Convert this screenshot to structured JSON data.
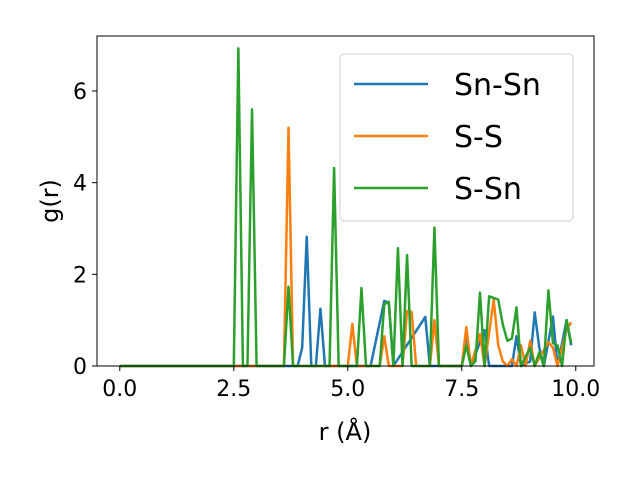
{
  "chart_data": {
    "type": "line",
    "xlabel": "r (Å)",
    "ylabel": "g(r)",
    "xlim": [
      -0.5,
      10.4
    ],
    "ylim": [
      0,
      7.2
    ],
    "x_ticks": [
      "0.0",
      "2.5",
      "5.0",
      "7.5",
      "10.0"
    ],
    "y_ticks": [
      "0",
      "2",
      "4",
      "6"
    ],
    "legend_position": "upper right",
    "series": [
      {
        "name": "Sn-Sn",
        "color": "#1f77b4",
        "points": [
          [
            0,
            0
          ],
          [
            3.8,
            0
          ],
          [
            3.9,
            0
          ],
          [
            4.0,
            0.4
          ],
          [
            4.1,
            2.82
          ],
          [
            4.2,
            0
          ],
          [
            4.3,
            0
          ],
          [
            4.4,
            1.25
          ],
          [
            4.5,
            0
          ],
          [
            5.5,
            0
          ],
          [
            5.8,
            1.42
          ],
          [
            5.9,
            1.38
          ],
          [
            6.0,
            0
          ],
          [
            6.7,
            1.07
          ],
          [
            6.8,
            0
          ],
          [
            7.5,
            0
          ],
          [
            7.6,
            0.7
          ],
          [
            7.7,
            0
          ],
          [
            8.0,
            0.78
          ],
          [
            8.1,
            0
          ],
          [
            8.6,
            0
          ],
          [
            8.7,
            0.65
          ],
          [
            8.8,
            0
          ],
          [
            9.0,
            0.1
          ],
          [
            9.1,
            1.17
          ],
          [
            9.2,
            0.4
          ],
          [
            9.3,
            0
          ],
          [
            9.5,
            1.08
          ],
          [
            9.6,
            0
          ],
          [
            9.8,
            1.0
          ],
          [
            9.9,
            0.45
          ]
        ]
      },
      {
        "name": "S-S",
        "color": "#ff7f0e",
        "points": [
          [
            0,
            0
          ],
          [
            3.6,
            0
          ],
          [
            3.7,
            5.2
          ],
          [
            3.8,
            0
          ],
          [
            5.0,
            0
          ],
          [
            5.1,
            0.92
          ],
          [
            5.2,
            0
          ],
          [
            5.7,
            0
          ],
          [
            5.8,
            0.65
          ],
          [
            5.9,
            0
          ],
          [
            6.2,
            0
          ],
          [
            6.3,
            1.2
          ],
          [
            6.4,
            1.18
          ],
          [
            6.5,
            0
          ],
          [
            6.8,
            0
          ],
          [
            6.9,
            1.0
          ],
          [
            7.0,
            0
          ],
          [
            7.5,
            0
          ],
          [
            7.6,
            0.85
          ],
          [
            7.7,
            0
          ],
          [
            7.9,
            0.7
          ],
          [
            8.0,
            0
          ],
          [
            8.2,
            1.45
          ],
          [
            8.3,
            0.45
          ],
          [
            8.4,
            0.1
          ],
          [
            8.5,
            0
          ],
          [
            8.6,
            0.15
          ],
          [
            8.7,
            0
          ],
          [
            8.8,
            0.45
          ],
          [
            8.9,
            0
          ],
          [
            9.0,
            0.55
          ],
          [
            9.1,
            0
          ],
          [
            9.4,
            0.52
          ],
          [
            9.5,
            0.4
          ],
          [
            9.6,
            0
          ],
          [
            9.8,
            0.8
          ],
          [
            9.9,
            0.95
          ]
        ]
      },
      {
        "name": "S-Sn",
        "color": "#2ca02c",
        "points": [
          [
            0,
            0
          ],
          [
            2.5,
            0
          ],
          [
            2.6,
            6.93
          ],
          [
            2.7,
            0
          ],
          [
            2.8,
            0
          ],
          [
            2.9,
            5.6
          ],
          [
            3.0,
            0
          ],
          [
            3.6,
            0
          ],
          [
            3.7,
            1.73
          ],
          [
            3.8,
            0
          ],
          [
            4.6,
            0
          ],
          [
            4.7,
            4.32
          ],
          [
            4.8,
            0
          ],
          [
            5.2,
            0
          ],
          [
            5.3,
            1.7
          ],
          [
            5.4,
            0
          ],
          [
            5.7,
            0
          ],
          [
            5.8,
            1.35
          ],
          [
            5.9,
            1.4
          ],
          [
            6.0,
            0
          ],
          [
            6.1,
            2.57
          ],
          [
            6.2,
            0
          ],
          [
            6.3,
            2.42
          ],
          [
            6.4,
            0
          ],
          [
            6.8,
            0
          ],
          [
            6.9,
            3.02
          ],
          [
            7.0,
            0
          ],
          [
            7.5,
            0
          ],
          [
            7.6,
            0.45
          ],
          [
            7.7,
            0
          ],
          [
            7.8,
            0.1
          ],
          [
            7.9,
            1.6
          ],
          [
            8.0,
            0
          ],
          [
            8.1,
            1.52
          ],
          [
            8.3,
            1.45
          ],
          [
            8.4,
            0.9
          ],
          [
            8.5,
            0.55
          ],
          [
            8.6,
            0.6
          ],
          [
            8.7,
            1.28
          ],
          [
            8.8,
            0
          ],
          [
            9.0,
            0.4
          ],
          [
            9.1,
            0
          ],
          [
            9.2,
            0.3
          ],
          [
            9.3,
            0
          ],
          [
            9.4,
            1.65
          ],
          [
            9.5,
            0.5
          ],
          [
            9.6,
            0.45
          ],
          [
            9.7,
            0
          ],
          [
            9.8,
            1.0
          ],
          [
            9.9,
            0.5
          ]
        ]
      }
    ]
  }
}
